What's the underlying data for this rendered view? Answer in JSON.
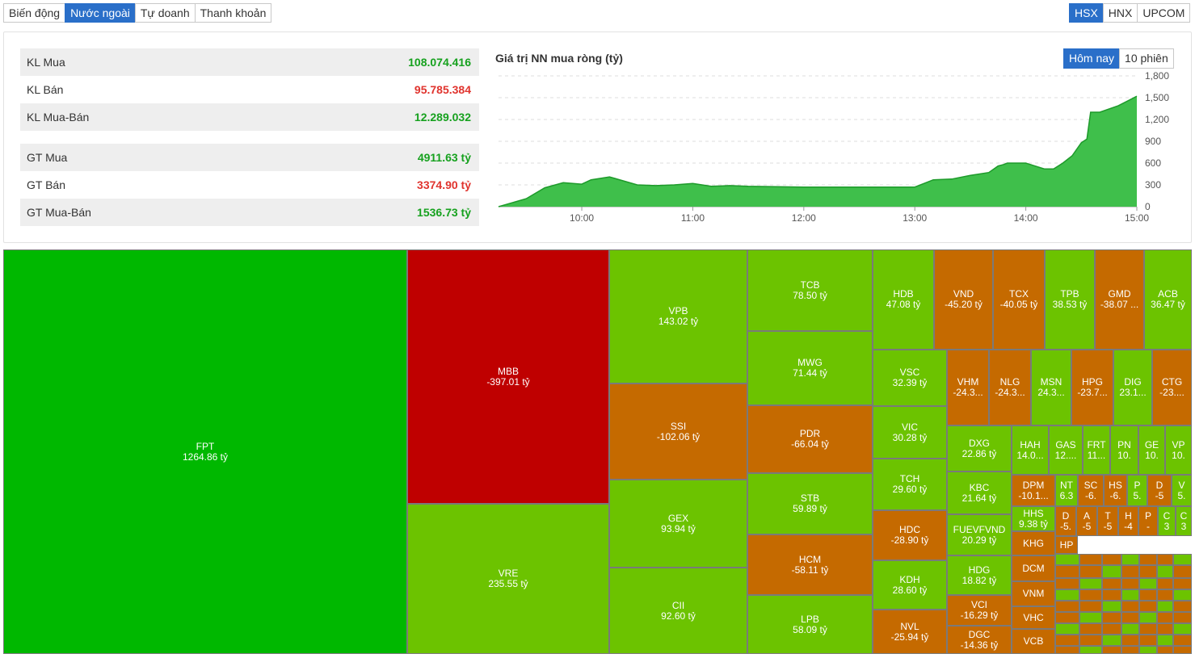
{
  "top_tabs": [
    "Biến động",
    "Nước ngoài",
    "Tự doanh",
    "Thanh khoản"
  ],
  "exchange_tabs": [
    "HSX",
    "HNX",
    "UPCOM"
  ],
  "stats": {
    "kl_mua_label": "KL Mua",
    "kl_mua": "108.074.416",
    "kl_ban_label": "KL Bán",
    "kl_ban": "95.785.384",
    "kl_net_label": "KL Mua-Bán",
    "kl_net": "12.289.032",
    "gt_mua_label": "GT Mua",
    "gt_mua": "4911.63 tỷ",
    "gt_ban_label": "GT Bán",
    "gt_ban": "3374.90 tỷ",
    "gt_net_label": "GT Mua-Bán",
    "gt_net": "1536.73 tỷ"
  },
  "chart_title": "Giá trị NN mua ròng (tỷ)",
  "range_tabs": [
    "Hôm nay",
    "10 phiên"
  ],
  "colors": {
    "green_strong": "#00b800",
    "green": "#6cc300",
    "orange": "#c56a00",
    "red": "#bf0000",
    "accent": "#2a6fc9"
  },
  "chart_data": {
    "type": "area",
    "title": "Giá trị NN mua ròng (tỷ)",
    "xlabel": "",
    "ylabel": "",
    "x_ticks": [
      "10:00",
      "11:00",
      "12:00",
      "13:00",
      "14:00",
      "15:00"
    ],
    "y_ticks": [
      0,
      300,
      600,
      900,
      1200,
      1500,
      1800
    ],
    "ylim": [
      0,
      1800
    ],
    "grid": true,
    "series": [
      {
        "x": [
          "09:15",
          "09:30",
          "09:40",
          "09:50",
          "10:00",
          "10:05",
          "10:15",
          "10:30",
          "10:40",
          "10:50",
          "11:00",
          "11:10",
          "11:20",
          "11:30",
          "12:00",
          "12:30",
          "13:00",
          "13:05",
          "13:10",
          "13:20",
          "13:30",
          "13:40",
          "13:45",
          "13:48",
          "13:50",
          "14:00",
          "14:10",
          "14:15",
          "14:20",
          "14:25",
          "14:30",
          "14:33",
          "14:35",
          "14:40",
          "14:50",
          "15:00"
        ],
        "values": [
          0,
          110,
          260,
          330,
          310,
          370,
          410,
          300,
          290,
          300,
          320,
          280,
          290,
          280,
          270,
          270,
          270,
          320,
          370,
          380,
          430,
          470,
          560,
          580,
          600,
          600,
          520,
          520,
          600,
          700,
          880,
          930,
          1300,
          1300,
          1390,
          1520
        ]
      }
    ]
  },
  "treemap": [
    {
      "sym": "FPT",
      "val": "1264.86 tỷ",
      "c": "green_strong"
    },
    {
      "sym": "MBB",
      "val": "-397.01 tỷ",
      "c": "red"
    },
    {
      "sym": "VRE",
      "val": "235.55 tỷ",
      "c": "green"
    },
    {
      "sym": "VPB",
      "val": "143.02 tỷ",
      "c": "green"
    },
    {
      "sym": "SSI",
      "val": "-102.06 tỷ",
      "c": "orange"
    },
    {
      "sym": "GEX",
      "val": "93.94 tỷ",
      "c": "green"
    },
    {
      "sym": "CII",
      "val": "92.60 tỷ",
      "c": "green"
    },
    {
      "sym": "TCB",
      "val": "78.50 tỷ",
      "c": "green"
    },
    {
      "sym": "MWG",
      "val": "71.44 tỷ",
      "c": "green"
    },
    {
      "sym": "PDR",
      "val": "-66.04 tỷ",
      "c": "orange"
    },
    {
      "sym": "STB",
      "val": "59.89 tỷ",
      "c": "green"
    },
    {
      "sym": "HCM",
      "val": "-58.11 tỷ",
      "c": "orange"
    },
    {
      "sym": "LPB",
      "val": "58.09 tỷ",
      "c": "green"
    },
    {
      "sym": "HDB",
      "val": "47.08 tỷ",
      "c": "green"
    },
    {
      "sym": "VND",
      "val": "-45.20 tỷ",
      "c": "orange"
    },
    {
      "sym": "TCX",
      "val": "-40.05 tỷ",
      "c": "orange"
    },
    {
      "sym": "TPB",
      "val": "38.53 tỷ",
      "c": "green"
    },
    {
      "sym": "GMD",
      "val": "-38.07 ...",
      "c": "orange"
    },
    {
      "sym": "ACB",
      "val": "36.47 tỷ",
      "c": "green"
    },
    {
      "sym": "VSC",
      "val": "32.39 tỷ",
      "c": "green"
    },
    {
      "sym": "VIC",
      "val": "30.28 tỷ",
      "c": "green"
    },
    {
      "sym": "TCH",
      "val": "29.60 tỷ",
      "c": "green"
    },
    {
      "sym": "HDC",
      "val": "-28.90 tỷ",
      "c": "orange"
    },
    {
      "sym": "KDH",
      "val": "28.60 tỷ",
      "c": "green"
    },
    {
      "sym": "NVL",
      "val": "-25.94 tỷ",
      "c": "orange"
    },
    {
      "sym": "VHM",
      "val": "-24.3...",
      "c": "orange"
    },
    {
      "sym": "NLG",
      "val": "-24.3...",
      "c": "orange"
    },
    {
      "sym": "MSN",
      "val": "24.3...",
      "c": "green"
    },
    {
      "sym": "HPG",
      "val": "-23.7...",
      "c": "orange"
    },
    {
      "sym": "DIG",
      "val": "23.1...",
      "c": "green"
    },
    {
      "sym": "CTG",
      "val": "-23....",
      "c": "orange"
    },
    {
      "sym": "DXG",
      "val": "22.86 tỷ",
      "c": "green"
    },
    {
      "sym": "KBC",
      "val": "21.64 tỷ",
      "c": "green"
    },
    {
      "sym": "FUEVFVND",
      "val": "20.29 tỷ",
      "c": "green"
    },
    {
      "sym": "HDG",
      "val": "18.82 tỷ",
      "c": "green"
    },
    {
      "sym": "VCI",
      "val": "-16.29 tỷ",
      "c": "orange"
    },
    {
      "sym": "DGC",
      "val": "-14.36 tỷ",
      "c": "orange"
    },
    {
      "sym": "HAH",
      "val": "14.0...",
      "c": "green"
    },
    {
      "sym": "GAS",
      "val": "12....",
      "c": "green"
    },
    {
      "sym": "FRT",
      "val": "11...",
      "c": "green"
    },
    {
      "sym": "PN",
      "val": "10.",
      "c": "green"
    },
    {
      "sym": "GE",
      "val": "10.",
      "c": "green"
    },
    {
      "sym": "VP",
      "val": "10.",
      "c": "green"
    },
    {
      "sym": "DPM",
      "val": "-10.1...",
      "c": "orange"
    },
    {
      "sym": "NT",
      "val": "6.3",
      "c": "green"
    },
    {
      "sym": "SC",
      "val": "-6.",
      "c": "orange"
    },
    {
      "sym": "HS",
      "val": "-6.",
      "c": "orange"
    },
    {
      "sym": "P",
      "val": "5.",
      "c": "green"
    },
    {
      "sym": "D",
      "val": "-5",
      "c": "orange"
    },
    {
      "sym": "V",
      "val": "5.",
      "c": "green"
    },
    {
      "sym": "HHS",
      "val": "9.38 tỷ",
      "c": "green"
    },
    {
      "sym": "D",
      "val": "-5.",
      "c": "orange"
    },
    {
      "sym": "A",
      "val": "-5",
      "c": "orange"
    },
    {
      "sym": "T",
      "val": "-5",
      "c": "orange"
    },
    {
      "sym": "H",
      "val": "-4",
      "c": "orange"
    },
    {
      "sym": "P",
      "val": "-",
      "c": "orange"
    },
    {
      "sym": "C",
      "val": "3",
      "c": "green"
    },
    {
      "sym": "C",
      "val": "3",
      "c": "green"
    },
    {
      "sym": "KHG",
      "val": "",
      "c": "orange"
    },
    {
      "sym": "HP",
      "val": "",
      "c": "orange"
    },
    {
      "sym": "DCM",
      "val": "",
      "c": "orange"
    },
    {
      "sym": "VNM",
      "val": "",
      "c": "orange"
    },
    {
      "sym": "VHC",
      "val": "",
      "c": "orange"
    },
    {
      "sym": "VCB",
      "val": "",
      "c": "orange"
    }
  ]
}
